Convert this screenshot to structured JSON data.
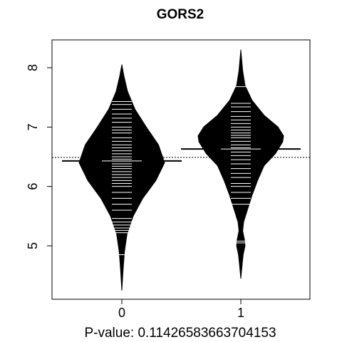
{
  "chart_data": {
    "type": "beanplot",
    "title": "GORS2",
    "xlabel": "P-value: 0.11426583663704153",
    "ylabel": "",
    "categories": [
      "0",
      "1"
    ],
    "y_ticks": [
      5,
      6,
      7,
      8
    ],
    "ylim": [
      4.1,
      8.45
    ],
    "overall_mean": 6.49,
    "grid": false,
    "legend": "none",
    "series": [
      {
        "category": "0",
        "mean": 6.43,
        "min": 4.25,
        "max": 8.05,
        "density": [
          [
            4.25,
            0.0
          ],
          [
            4.6,
            0.03
          ],
          [
            4.9,
            0.06
          ],
          [
            5.2,
            0.12
          ],
          [
            5.5,
            0.26
          ],
          [
            5.8,
            0.48
          ],
          [
            6.1,
            0.78
          ],
          [
            6.4,
            0.98
          ],
          [
            6.7,
            0.84
          ],
          [
            7.0,
            0.56
          ],
          [
            7.3,
            0.3
          ],
          [
            7.6,
            0.13
          ],
          [
            7.85,
            0.05
          ],
          [
            8.05,
            0.0
          ]
        ],
        "observations": [
          4.85,
          5.22,
          5.26,
          5.3,
          5.35,
          5.4,
          5.46,
          5.6,
          5.7,
          5.8,
          5.9,
          6.0,
          6.05,
          6.1,
          6.15,
          6.2,
          6.25,
          6.3,
          6.34,
          6.38,
          6.42,
          6.46,
          6.5,
          6.55,
          6.6,
          6.65,
          6.7,
          6.76,
          6.82,
          6.9,
          6.95,
          7.0,
          7.08,
          7.15,
          7.22,
          7.3,
          7.38,
          7.43
        ]
      },
      {
        "category": "1",
        "mean": 6.63,
        "min": 4.45,
        "max": 8.3,
        "density": [
          [
            4.45,
            0.0
          ],
          [
            4.7,
            0.03
          ],
          [
            4.85,
            0.05
          ],
          [
            5.0,
            0.09
          ],
          [
            5.1,
            0.08
          ],
          [
            5.25,
            0.04
          ],
          [
            5.4,
            0.06
          ],
          [
            5.6,
            0.14
          ],
          [
            5.85,
            0.24
          ],
          [
            6.1,
            0.36
          ],
          [
            6.35,
            0.5
          ],
          [
            6.55,
            0.74
          ],
          [
            6.75,
            0.9
          ],
          [
            6.85,
            0.92
          ],
          [
            7.0,
            0.8
          ],
          [
            7.2,
            0.5
          ],
          [
            7.45,
            0.24
          ],
          [
            7.7,
            0.09
          ],
          [
            7.95,
            0.04
          ],
          [
            8.3,
            0.0
          ]
        ],
        "observations": [
          5.05,
          5.08,
          5.7,
          5.8,
          5.9,
          6.0,
          6.05,
          6.15,
          6.22,
          6.3,
          6.38,
          6.45,
          6.52,
          6.58,
          6.65,
          6.7,
          6.76,
          6.82,
          6.86,
          6.9,
          6.95,
          7.0,
          7.06,
          7.12,
          7.18,
          7.26,
          7.34,
          7.4,
          7.68
        ]
      }
    ]
  }
}
